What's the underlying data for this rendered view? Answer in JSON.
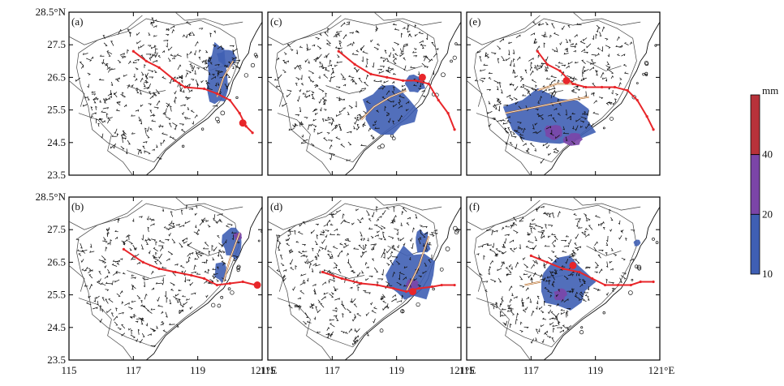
{
  "chart_data": {
    "type": "map",
    "panels": [
      {
        "label": "(a)",
        "track": [
          [
            117.0,
            27.3
          ],
          [
            117.4,
            27.0
          ],
          [
            117.8,
            26.8
          ],
          [
            118.3,
            26.4
          ],
          [
            118.6,
            26.2
          ],
          [
            119.2,
            26.15
          ],
          [
            119.6,
            26.0
          ],
          [
            120.0,
            25.8
          ],
          [
            120.3,
            25.4
          ],
          [
            120.5,
            25.0
          ],
          [
            120.7,
            24.8
          ]
        ],
        "center": [
          120.4,
          25.1
        ],
        "shear": [
          [
            [
              119.6,
              25.9
            ],
            [
              119.8,
              26.5
            ],
            [
              120.1,
              27.0
            ]
          ]
        ],
        "rain": [
          [
            119.6,
            26.6,
            0.35,
            1.0,
            "#3f5fb4"
          ],
          [
            119.9,
            27.1,
            0.35,
            0.3,
            "#3f5fb4"
          ]
        ]
      },
      {
        "label": "(b)",
        "track": [
          [
            116.7,
            26.9
          ],
          [
            117.3,
            26.5
          ],
          [
            117.8,
            26.3
          ],
          [
            118.3,
            26.2
          ],
          [
            118.8,
            26.1
          ],
          [
            119.2,
            26.0
          ],
          [
            119.6,
            25.8
          ],
          [
            120.0,
            25.85
          ],
          [
            120.4,
            25.9
          ],
          [
            120.8,
            25.8
          ]
        ],
        "center": [
          120.85,
          25.8
        ],
        "shear": [
          [
            [
              119.8,
              25.9
            ],
            [
              120.0,
              26.6
            ],
            [
              120.3,
              27.4
            ]
          ]
        ],
        "rain": [
          [
            120.1,
            27.1,
            0.35,
            0.5,
            "#3f5fb4"
          ],
          [
            120.25,
            27.3,
            0.15,
            0.15,
            "#7b45a8"
          ],
          [
            119.7,
            26.2,
            0.2,
            0.3,
            "#3f5fb4"
          ]
        ]
      },
      {
        "label": "(c)",
        "track": [
          [
            117.2,
            27.3
          ],
          [
            117.7,
            26.9
          ],
          [
            118.2,
            26.6
          ],
          [
            118.7,
            26.5
          ],
          [
            119.2,
            26.4
          ],
          [
            119.6,
            26.4
          ],
          [
            120.0,
            26.3
          ],
          [
            120.3,
            25.8
          ],
          [
            120.6,
            25.4
          ],
          [
            120.8,
            24.9
          ]
        ],
        "center": [
          119.8,
          26.5
        ],
        "shear": [
          [
            [
              117.9,
              25.2
            ],
            [
              118.3,
              25.6
            ],
            [
              118.8,
              25.9
            ],
            [
              119.3,
              26.1
            ]
          ]
        ],
        "rain": [
          [
            118.7,
            25.5,
            0.9,
            0.8,
            "#3f5fb4"
          ],
          [
            119.6,
            26.3,
            0.3,
            0.3,
            "#3f5fb4"
          ]
        ]
      },
      {
        "label": "(d)",
        "track": [
          [
            116.7,
            26.2
          ],
          [
            117.3,
            26.0
          ],
          [
            117.9,
            25.85
          ],
          [
            118.4,
            25.8
          ],
          [
            118.9,
            25.7
          ],
          [
            119.3,
            25.6
          ],
          [
            119.7,
            25.7
          ],
          [
            120.1,
            25.75
          ],
          [
            120.4,
            25.8
          ],
          [
            120.8,
            25.8
          ]
        ],
        "center": [
          119.5,
          25.6
        ],
        "shear": [
          [
            [
              119.3,
              25.6
            ],
            [
              119.7,
              26.4
            ],
            [
              120.0,
              27.3
            ]
          ]
        ],
        "rain": [
          [
            119.4,
            26.1,
            0.8,
            0.9,
            "#3f5fb4"
          ],
          [
            119.8,
            27.1,
            0.25,
            0.4,
            "#3f5fb4"
          ],
          [
            119.5,
            25.8,
            0.2,
            0.2,
            "#7b45a8"
          ]
        ]
      },
      {
        "label": "(e)",
        "track": [
          [
            117.2,
            27.3
          ],
          [
            117.5,
            26.9
          ],
          [
            117.9,
            26.7
          ],
          [
            118.3,
            26.3
          ],
          [
            118.7,
            26.2
          ],
          [
            119.2,
            26.2
          ],
          [
            119.6,
            26.2
          ],
          [
            120.0,
            26.1
          ],
          [
            120.3,
            25.8
          ],
          [
            120.6,
            25.3
          ],
          [
            120.8,
            24.9
          ]
        ],
        "center": [
          118.1,
          26.4
        ],
        "shear": [
          [
            [
              117.2,
              26.1
            ],
            [
              117.8,
              26.3
            ],
            [
              118.4,
              26.3
            ]
          ],
          [
            [
              116.2,
              25.4
            ],
            [
              117.2,
              25.6
            ],
            [
              118.2,
              25.8
            ],
            [
              118.8,
              25.9
            ]
          ]
        ],
        "rain": [
          [
            117.6,
            25.2,
            1.6,
            0.9,
            "#3f5fb4"
          ],
          [
            117.7,
            24.8,
            0.3,
            0.25,
            "#7b45a8"
          ],
          [
            118.3,
            24.6,
            0.3,
            0.2,
            "#7b45a8"
          ]
        ]
      },
      {
        "label": "(f)",
        "track": [
          [
            117.0,
            26.7
          ],
          [
            117.5,
            26.5
          ],
          [
            118.0,
            26.3
          ],
          [
            118.5,
            26.2
          ],
          [
            118.9,
            26.0
          ],
          [
            119.3,
            25.8
          ],
          [
            119.7,
            25.8
          ],
          [
            120.1,
            25.8
          ],
          [
            120.4,
            25.9
          ],
          [
            120.8,
            25.9
          ]
        ],
        "center": [
          118.3,
          26.4
        ],
        "shear": [
          [
            [
              116.8,
              25.8
            ],
            [
              117.3,
              25.9
            ]
          ]
        ],
        "rain": [
          [
            118.0,
            25.9,
            0.9,
            0.8,
            "#3f5fb4"
          ],
          [
            117.9,
            25.5,
            0.2,
            0.2,
            "#7b45a8"
          ],
          [
            120.3,
            27.1,
            0.12,
            0.12,
            "#3f5fb4"
          ]
        ]
      }
    ],
    "xticks": [
      115,
      117,
      119,
      121
    ],
    "xtick_labels": [
      "115",
      "117",
      "119",
      "121°E"
    ],
    "yticks": [
      23.5,
      24.5,
      25.5,
      26.5,
      27.5,
      28.5
    ],
    "ytick_labels": [
      "23.5",
      "24.5",
      "25.5",
      "26.5",
      "27.5",
      "28.5°N"
    ],
    "xlim": [
      115,
      121
    ],
    "ylim": [
      23.5,
      28.5
    ],
    "colorbar": {
      "unit": "mm",
      "levels": [
        10,
        20,
        40
      ],
      "colors": [
        "#3f5fb4",
        "#7b45a8",
        "#b8323a"
      ]
    },
    "track_color": "#e8262a",
    "shear_color": "#b5651d"
  }
}
